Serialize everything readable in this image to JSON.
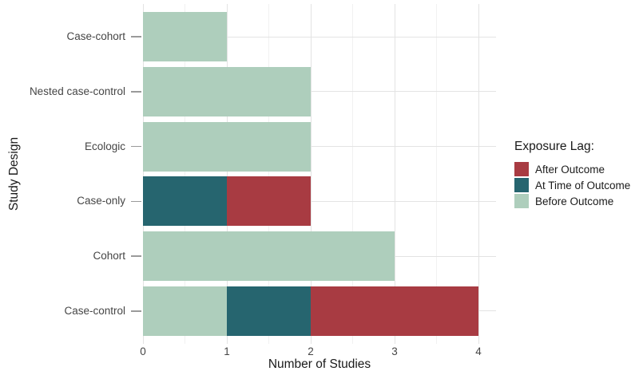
{
  "colors": {
    "after": "#A83B42",
    "at_time": "#26656F",
    "before": "#AECEBC"
  },
  "chart_data": {
    "type": "bar",
    "orientation": "horizontal",
    "stacked": true,
    "title": "",
    "xlabel": "Number of Studies",
    "ylabel": "Study Design",
    "xlim": [
      0,
      4
    ],
    "x_ticks": [
      0,
      1,
      2,
      3,
      4
    ],
    "x_tick_labels": [
      "0",
      "1",
      "2",
      "3",
      "4"
    ],
    "x_minor_ticks": [
      0.5,
      1.5,
      2.5,
      3.5
    ],
    "grid": true,
    "categories": [
      "Case-cohort",
      "Nested case-control",
      "Ecologic",
      "Case-only",
      "Cohort",
      "Case-control"
    ],
    "series": [
      {
        "name": "Before Outcome",
        "color_key": "before",
        "values": [
          1,
          2,
          2,
          0,
          3,
          1
        ]
      },
      {
        "name": "At Time of Outcome",
        "color_key": "at_time",
        "values": [
          0,
          0,
          0,
          1,
          0,
          1
        ]
      },
      {
        "name": "After Outcome",
        "color_key": "after",
        "values": [
          0,
          0,
          0,
          1,
          0,
          2
        ]
      }
    ],
    "legend": {
      "title": "Exposure Lag:",
      "position": "right",
      "entries": [
        {
          "label": "After Outcome",
          "color_key": "after"
        },
        {
          "label": "At Time of Outcome",
          "color_key": "at_time"
        },
        {
          "label": "Before Outcome",
          "color_key": "before"
        }
      ]
    }
  }
}
